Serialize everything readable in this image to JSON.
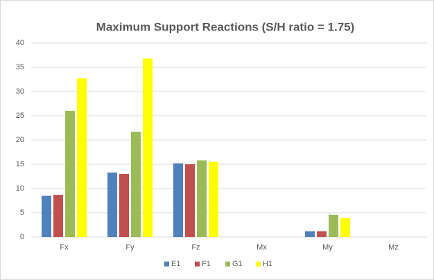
{
  "chart_data": {
    "type": "bar",
    "title": "Maximum Support Reactions (S/H ratio = 1.75)",
    "categories": [
      "Fx",
      "Fy",
      "Fz",
      "Mx",
      "My",
      "Mz"
    ],
    "series": [
      {
        "name": "E1",
        "color": "#4f81bd",
        "values": [
          8.5,
          13.3,
          15.2,
          0,
          1.2,
          0
        ]
      },
      {
        "name": "F1",
        "color": "#c0504d",
        "values": [
          8.7,
          13,
          15,
          0,
          1.2,
          0
        ]
      },
      {
        "name": "G1",
        "color": "#9bbb59",
        "values": [
          26,
          21.7,
          15.8,
          0,
          4.6,
          0
        ]
      },
      {
        "name": "H1",
        "color": "#ffff00",
        "values": [
          32.7,
          36.8,
          15.5,
          0,
          3.9,
          0
        ]
      }
    ],
    "ylim": [
      0,
      40
    ],
    "yticks": [
      0,
      5,
      10,
      15,
      20,
      25,
      30,
      35,
      40
    ],
    "grid": true,
    "legend": "bottom"
  }
}
